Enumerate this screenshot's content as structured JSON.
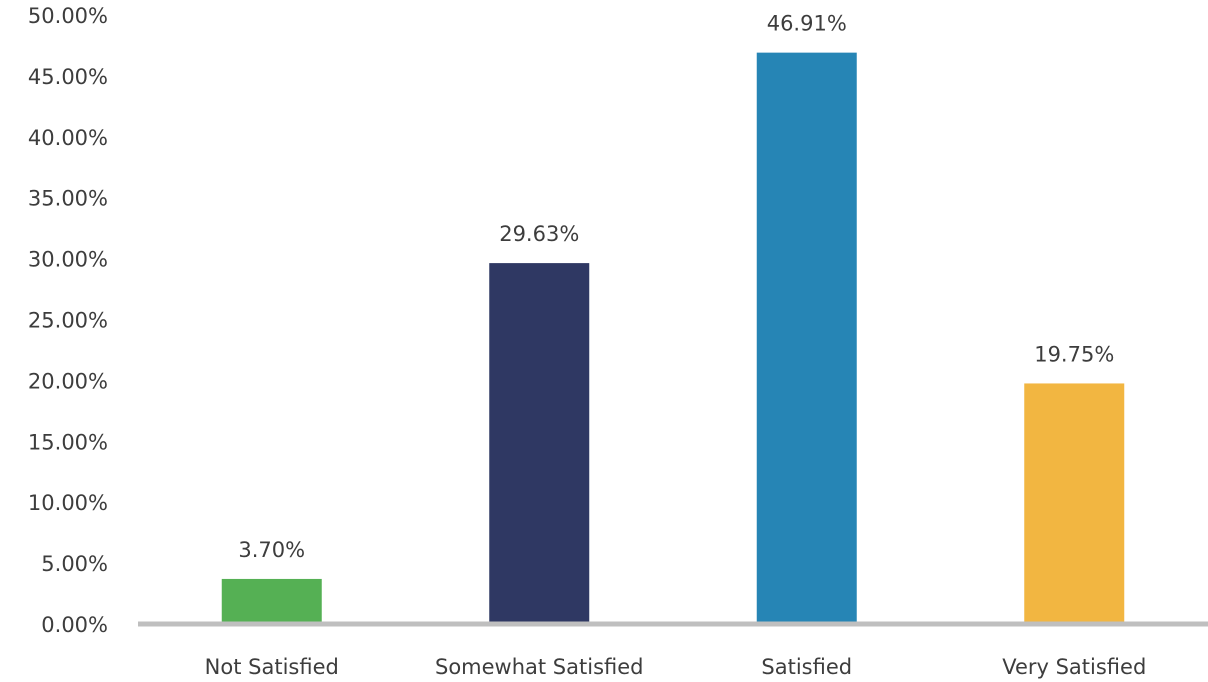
{
  "chart_data": {
    "type": "bar",
    "categories": [
      "Not Satisfied",
      "Somewhat Satisfied",
      "Satisfied",
      "Very Satisfied"
    ],
    "values": [
      3.7,
      29.63,
      46.91,
      19.75
    ],
    "data_labels": [
      "3.70%",
      "29.63%",
      "46.91%",
      "19.75%"
    ],
    "bar_colors": [
      "#55b054",
      "#2f3863",
      "#2685b5",
      "#f2b641"
    ],
    "ylim": [
      0,
      50
    ],
    "yticks": [
      0,
      5,
      10,
      15,
      20,
      25,
      30,
      35,
      40,
      45,
      50
    ],
    "ytick_labels": [
      "0.00%",
      "5.00%",
      "10.00%",
      "15.00%",
      "20.00%",
      "25.00%",
      "30.00%",
      "35.00%",
      "40.00%",
      "45.00%",
      "50.00%"
    ],
    "grid": false,
    "axis_color": "#bfbfbf",
    "text_color": "#3d3d3d"
  }
}
